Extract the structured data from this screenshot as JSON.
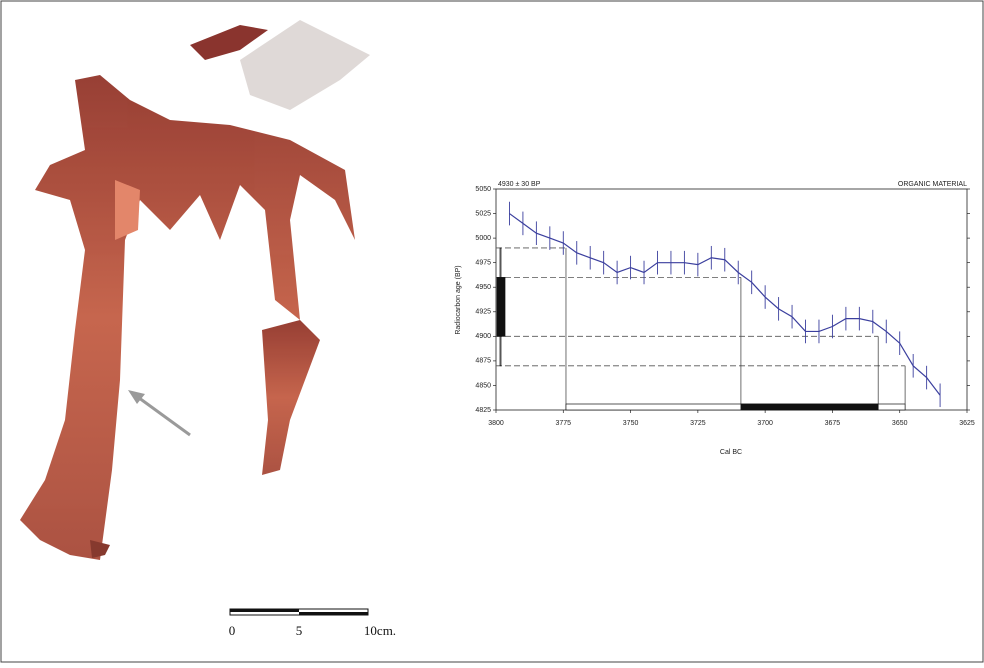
{
  "chart_data": {
    "type": "line",
    "title": "4930 ± 30 BP",
    "subtitle": "ORGANIC MATERIAL",
    "x_label": "Cal BC",
    "y_label": "Radiocarbon age (BP)",
    "x": [
      3795,
      3790,
      3785,
      3780,
      3775,
      3770,
      3765,
      3760,
      3755,
      3750,
      3745,
      3740,
      3735,
      3730,
      3725,
      3720,
      3715,
      3710,
      3705,
      3700,
      3695,
      3690,
      3685,
      3680,
      3675,
      3670,
      3665,
      3660,
      3655,
      3650,
      3645,
      3640,
      3635
    ],
    "series": [
      {
        "color": "#3b3f9e",
        "values": [
          5025,
          5015,
          5005,
          5000,
          4995,
          4985,
          4980,
          4975,
          4965,
          4970,
          4965,
          4975,
          4975,
          4975,
          4973,
          4980,
          4978,
          4965,
          4955,
          4940,
          4928,
          4920,
          4905,
          4905,
          4910,
          4918,
          4918,
          4915,
          4905,
          4893,
          4870,
          4858,
          4840
        ],
        "errors": [
          12,
          12,
          12,
          12,
          12,
          12,
          12,
          12,
          12,
          12,
          12,
          12,
          12,
          12,
          12,
          12,
          12,
          12,
          12,
          12,
          12,
          12,
          12,
          12,
          12,
          12,
          12,
          12,
          12,
          12,
          12,
          12,
          12
        ]
      }
    ],
    "age_bands": [
      {
        "low": 4870,
        "high": 4990
      },
      {
        "low": 4900,
        "high": 4960
      }
    ],
    "cal_ranges": [
      {
        "from": 3774,
        "to": 3648
      },
      {
        "from": 3709,
        "to": 3658
      }
    ],
    "xlim": [
      3800,
      3625
    ],
    "xticks": [
      3800,
      3775,
      3750,
      3725,
      3700,
      3675,
      3650,
      3625
    ],
    "ylim": [
      4825,
      5050
    ],
    "yticks": [
      4825,
      4850,
      4875,
      4900,
      4925,
      4950,
      4975,
      5000,
      5025,
      5050
    ]
  },
  "scale_bar": {
    "labels": [
      "0",
      "5",
      "10cm."
    ]
  }
}
